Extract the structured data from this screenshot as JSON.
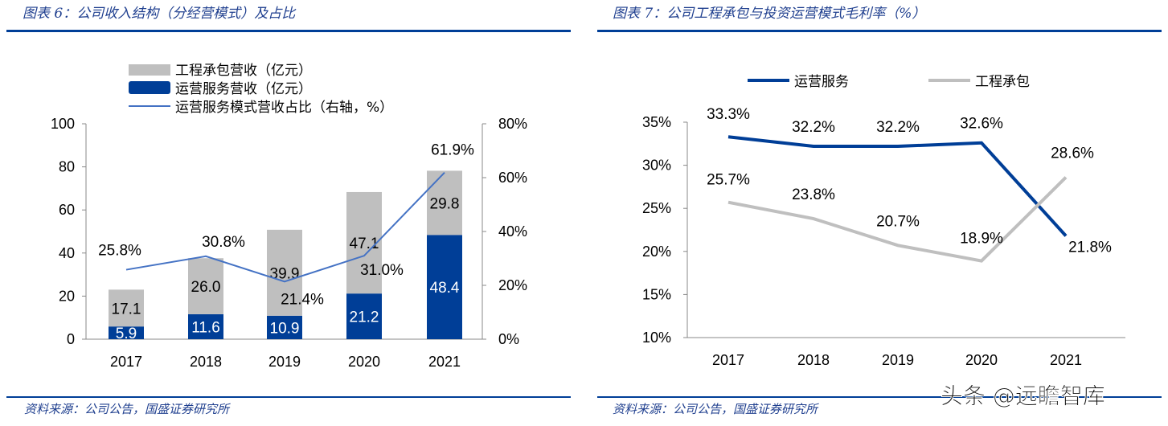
{
  "source_note": "资料来源：公司公告，国盛证券研究所",
  "watermark": "头条 @远瞻智库",
  "chart_data": [
    {
      "type": "bar",
      "title": "图表 6：公司收入结构（分经营模式）及占比",
      "categories": [
        "2017",
        "2018",
        "2019",
        "2020",
        "2021"
      ],
      "stacked": true,
      "series": [
        {
          "name": "运营服务营收（亿元）",
          "values": [
            5.9,
            11.6,
            10.9,
            21.2,
            48.4
          ],
          "color": "#003e97",
          "axis": "left"
        },
        {
          "name": "工程承包营收（亿元）",
          "values": [
            17.1,
            26.0,
            39.9,
            47.1,
            29.8
          ],
          "color": "#bfbfbf",
          "axis": "left"
        },
        {
          "name": "运营服务模式营收占比（右轴，%）",
          "type": "line",
          "values": [
            25.8,
            30.8,
            21.4,
            31.0,
            61.9
          ],
          "color": "#4472c4",
          "axis": "right"
        }
      ],
      "ylim": [
        0,
        100
      ],
      "yticks": [
        "0",
        "20",
        "40",
        "60",
        "80",
        "100"
      ],
      "y2lim": [
        0,
        80
      ],
      "y2ticks": [
        "0%",
        "20%",
        "40%",
        "60%",
        "80%"
      ],
      "line_labels": [
        "25.8%",
        "30.8%",
        "21.4%",
        "31.0%",
        "61.9%"
      ],
      "legend": "top"
    },
    {
      "type": "line",
      "title": "图表 7：公司工程承包与投资运营模式毛利率（%）",
      "categories": [
        "2017",
        "2018",
        "2019",
        "2020",
        "2021"
      ],
      "series": [
        {
          "name": "运营服务",
          "values": [
            33.3,
            32.2,
            32.2,
            32.6,
            21.8
          ],
          "color": "#003e97",
          "labels": [
            "33.3%",
            "32.2%",
            "32.2%",
            "32.6%",
            "21.8%"
          ]
        },
        {
          "name": "工程承包",
          "values": [
            25.7,
            23.8,
            20.7,
            18.9,
            28.6
          ],
          "color": "#bfbfbf",
          "labels": [
            "25.7%",
            "23.8%",
            "20.7%",
            "18.9%",
            "28.6%"
          ]
        }
      ],
      "ylim": [
        10,
        35
      ],
      "yticks": [
        "10%",
        "15%",
        "20%",
        "25%",
        "30%",
        "35%"
      ],
      "legend": "top"
    }
  ]
}
